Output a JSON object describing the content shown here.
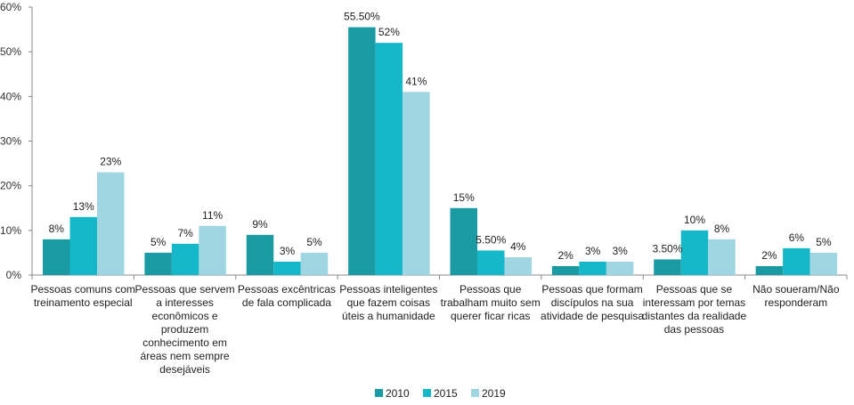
{
  "chart_data": {
    "type": "bar",
    "categories": [
      "Pessoas comuns com treinamento especial",
      "Pessoas que servem a interesses econômicos e produzem conhecimento em áreas nem sempre desejáveis",
      "Pessoas excêntricas de fala complicada",
      "Pessoas inteligentes que fazem coisas úteis a humanidade",
      "Pessoas que trabalham muito sem querer ficar ricas",
      "Pessoas que formam discípulos na sua atividade de pesquisa",
      "Pessoas que se interessam por temas distantes da realidade das pessoas",
      "Não soueram/Não responderam"
    ],
    "series": [
      {
        "name": "2010",
        "color": "#1a9aa3",
        "values": [
          8,
          5,
          9,
          55.5,
          15,
          2,
          3.5,
          2
        ],
        "labels": [
          "8%",
          "5%",
          "9%",
          "55.50%",
          "15%",
          "2%",
          "3.50%",
          "2%"
        ]
      },
      {
        "name": "2015",
        "color": "#15b8c9",
        "values": [
          13,
          7,
          3,
          52,
          5.5,
          3,
          10,
          6
        ],
        "labels": [
          "13%",
          "7%",
          "3%",
          "52%",
          "5.50%",
          "3%",
          "10%",
          "6%"
        ]
      },
      {
        "name": "2019",
        "color": "#9fd6e2",
        "values": [
          23,
          11,
          5,
          41,
          4,
          3,
          8,
          5
        ],
        "labels": [
          "23%",
          "11%",
          "5%",
          "41%",
          "4%",
          "3%",
          "8%",
          "5%"
        ]
      }
    ],
    "yticks": [
      "0%",
      "10%",
      "20%",
      "30%",
      "40%",
      "50%",
      "60%"
    ],
    "ylim": [
      0,
      60
    ],
    "grid": false,
    "legend_position": "bottom"
  }
}
